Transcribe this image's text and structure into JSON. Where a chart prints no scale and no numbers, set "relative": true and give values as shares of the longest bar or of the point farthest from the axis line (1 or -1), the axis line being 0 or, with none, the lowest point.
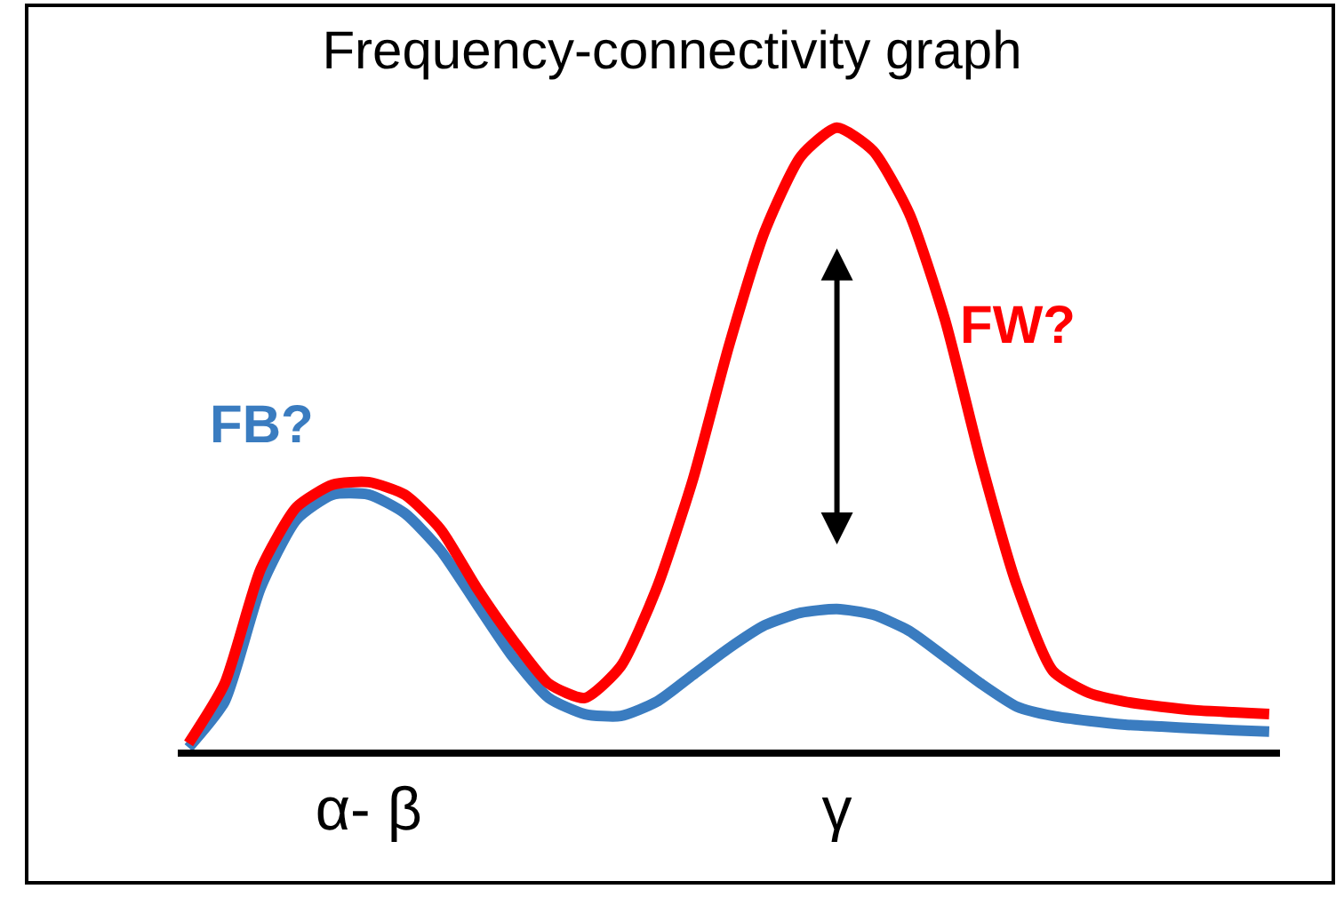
{
  "chart_data": {
    "type": "line",
    "title": "Frequency-connectivity graph",
    "relative": true,
    "categories": [
      null,
      null,
      null,
      null,
      null,
      "α- β",
      null,
      null,
      null,
      null,
      null,
      null,
      null,
      null,
      null,
      null,
      null,
      null,
      "γ",
      null,
      null,
      null,
      null,
      null,
      null,
      null,
      null,
      null,
      null,
      null,
      null
    ],
    "series": [
      {
        "name": "FB?",
        "color": "#3a7cc0",
        "values": [
          0.003,
          0.077,
          0.26,
          0.37,
          0.41,
          0.41,
          0.38,
          0.32,
          0.234,
          0.149,
          0.083,
          0.057,
          0.054,
          0.077,
          0.12,
          0.163,
          0.2,
          0.22,
          0.226,
          0.217,
          0.191,
          0.149,
          0.106,
          0.069,
          0.054,
          0.046,
          0.04,
          0.037,
          0.034,
          0.031,
          0.029
        ]
      },
      {
        "name": "FW?",
        "color": "#ff0000",
        "values": [
          0.01,
          0.106,
          0.29,
          0.39,
          0.426,
          0.43,
          0.41,
          0.354,
          0.26,
          0.177,
          0.106,
          0.083,
          0.134,
          0.26,
          0.434,
          0.649,
          0.834,
          0.954,
          1.0,
          0.963,
          0.863,
          0.691,
          0.463,
          0.263,
          0.126,
          0.091,
          0.077,
          0.069,
          0.063,
          0.06,
          0.057
        ]
      }
    ],
    "grid": false,
    "legend": false,
    "marker": "none",
    "line_style": "solid"
  }
}
